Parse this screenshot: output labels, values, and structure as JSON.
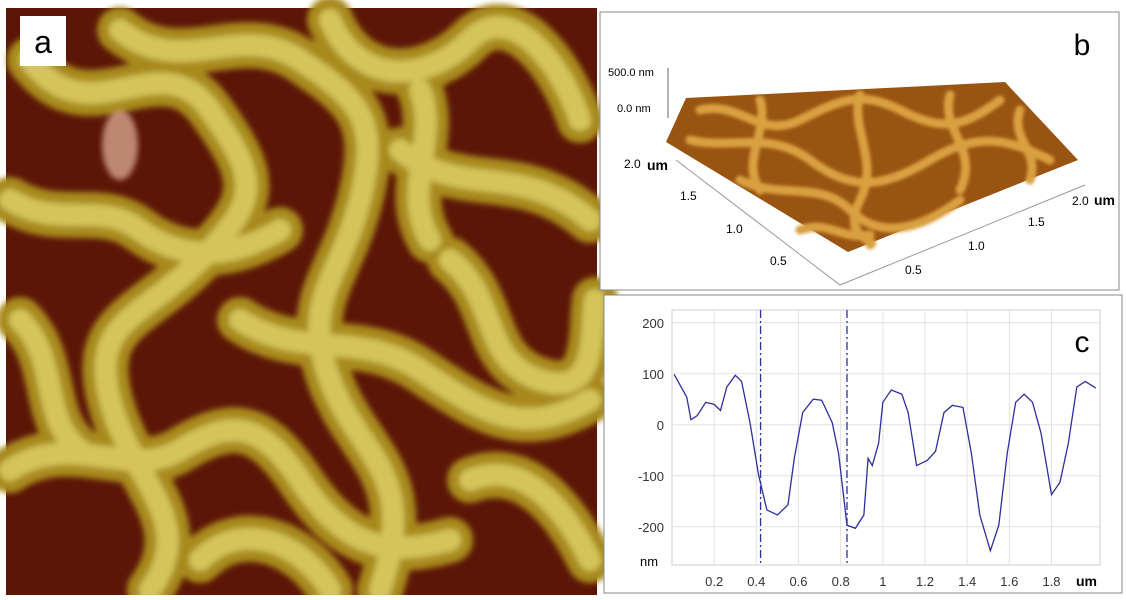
{
  "panel_labels": [
    "a",
    "b",
    "c"
  ],
  "panel_b": {
    "z_ticks": [
      "500.0 nm",
      "0.0 nm"
    ],
    "left_axis": {
      "ticks": [
        "2.0",
        "1.5",
        "1.0",
        "0.5"
      ],
      "unit": "um"
    },
    "right_axis": {
      "ticks": [
        "0.5",
        "1.0",
        "1.5",
        "2.0"
      ],
      "unit": "um"
    }
  },
  "chart_data": {
    "type": "line",
    "xlabel": "um",
    "ylabel": "nm",
    "color": "#2b2fa0",
    "x": [
      0.01,
      0.07,
      0.09,
      0.12,
      0.16,
      0.2,
      0.23,
      0.26,
      0.3,
      0.33,
      0.37,
      0.41,
      0.45,
      0.5,
      0.55,
      0.58,
      0.62,
      0.67,
      0.71,
      0.76,
      0.79,
      0.83,
      0.87,
      0.91,
      0.93,
      0.95,
      0.98,
      1.0,
      1.04,
      1.09,
      1.12,
      1.16,
      1.21,
      1.25,
      1.29,
      1.33,
      1.38,
      1.42,
      1.46,
      1.51,
      1.55,
      1.59,
      1.63,
      1.67,
      1.71,
      1.75,
      1.8,
      1.84,
      1.88,
      1.92,
      1.96,
      2.01
    ],
    "values": [
      99,
      54,
      10,
      18,
      44,
      40,
      28,
      74,
      97,
      85,
      4,
      -97,
      -167,
      -177,
      -157,
      -66,
      24,
      50,
      48,
      4,
      -56,
      -197,
      -203,
      -177,
      -66,
      -80,
      -36,
      44,
      68,
      60,
      24,
      -80,
      -70,
      -52,
      24,
      38,
      34,
      -56,
      -177,
      -247,
      -197,
      -56,
      44,
      60,
      44,
      -16,
      -137,
      -113,
      -36,
      74,
      85,
      72
    ],
    "markers": [
      0.42,
      0.83
    ],
    "xlim": [
      0,
      2.03
    ],
    "ylim": [
      -275,
      225
    ],
    "xticks": [
      0.2,
      0.4,
      0.6,
      0.8,
      1,
      1.2,
      1.4,
      1.6,
      1.8
    ],
    "yticks": [
      -200,
      -100,
      0,
      100,
      200
    ],
    "grid": true
  }
}
